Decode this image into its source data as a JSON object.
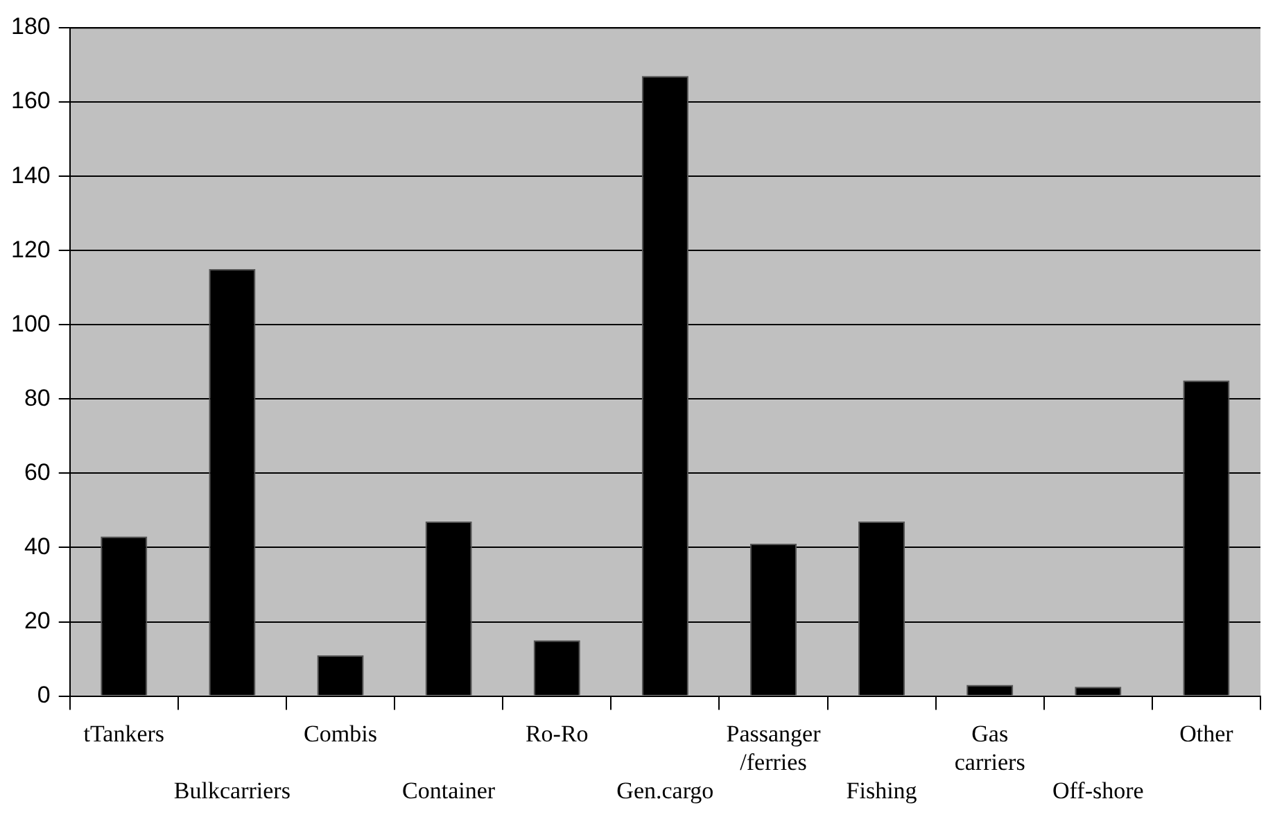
{
  "chart_data": {
    "type": "bar",
    "categories": [
      "tTankers",
      "Bulkcarriers",
      "Combis",
      "Container",
      "Ro-Ro",
      "Gen.cargo",
      "Passanger /ferries",
      "Fishing",
      "Gas carriers",
      "Off-shore",
      "Other"
    ],
    "values": [
      43,
      115,
      11,
      47,
      15,
      167,
      41,
      47,
      3,
      2.5,
      85
    ],
    "color": "#000000",
    "ylim": [
      0,
      180
    ],
    "yticks": [
      0,
      20,
      40,
      60,
      80,
      100,
      120,
      140,
      160,
      180
    ],
    "grid": "y",
    "legend": false
  }
}
